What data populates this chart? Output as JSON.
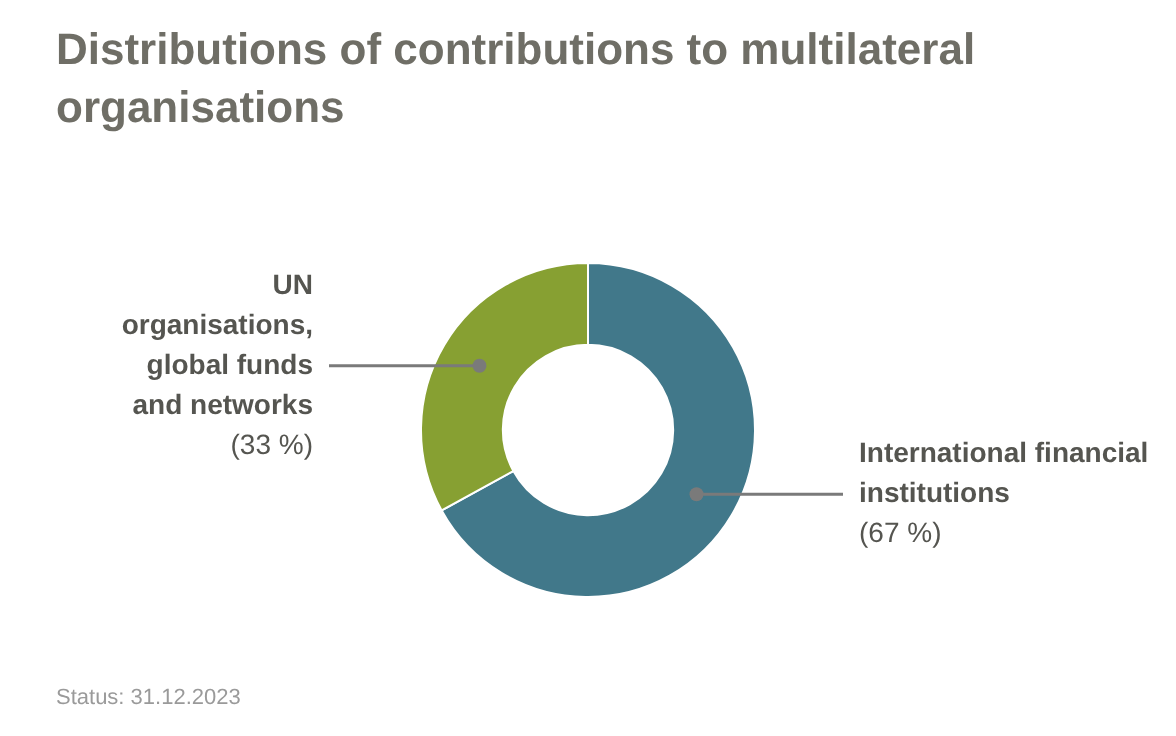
{
  "chart_data": {
    "type": "donut",
    "title": "Distributions of contributions to multilateral organisations",
    "categories": [
      "International financial institutions",
      "UN organisations, global funds and networks"
    ],
    "values": [
      67,
      33
    ],
    "colors": [
      "#41788a",
      "#87a032"
    ],
    "value_labels": [
      "(67 %)",
      "(33 %)"
    ],
    "legend": false,
    "annotations": [
      "Status: 31.12.2023"
    ]
  }
}
